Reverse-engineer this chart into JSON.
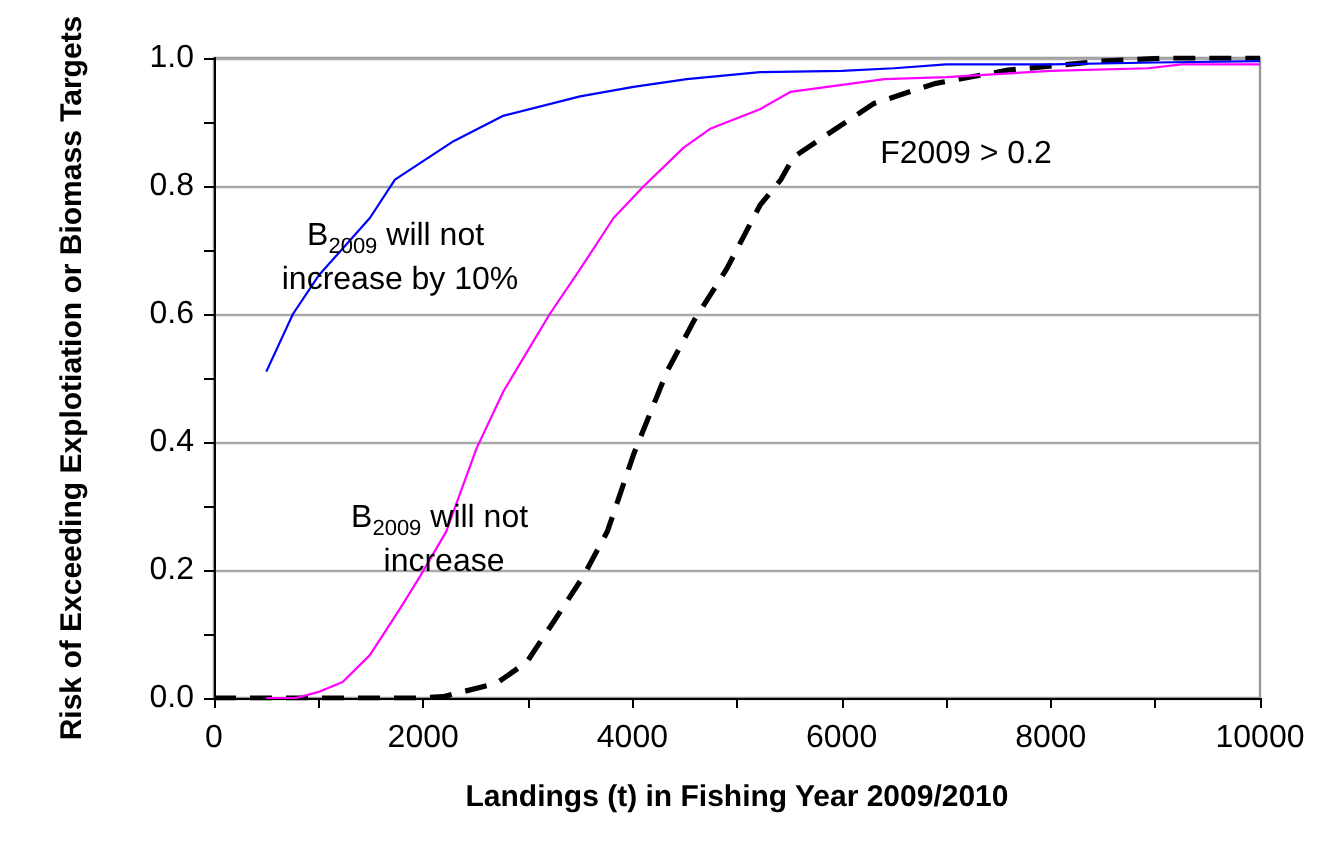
{
  "chart_data": {
    "type": "line",
    "xlabel": "Landings (t) in Fishing Year 2009/2010",
    "ylabel": "Risk of Exceeding Explotiation or Biomass Targets",
    "xlim": [
      0,
      10000
    ],
    "xticks": [
      0,
      {
        "value": 1000,
        "label": null
      },
      2000,
      {
        "value": 3000,
        "label": null
      },
      4000,
      {
        "value": 5000,
        "label": null
      },
      6000,
      {
        "value": 7000,
        "label": null
      },
      8000,
      {
        "value": 9000,
        "label": null
      },
      10000
    ],
    "ylim": [
      0,
      1
    ],
    "yticks": [
      {
        "value": 0,
        "label": "0.0"
      },
      {
        "value": 0.1,
        "label": null
      },
      0.2,
      {
        "value": 0.3,
        "label": null
      },
      0.4,
      {
        "value": 0.5,
        "label": null
      },
      0.6,
      {
        "value": 0.7,
        "label": null
      },
      0.8,
      {
        "value": 0.9,
        "label": null
      },
      {
        "value": 1,
        "label": "1.0"
      }
    ],
    "grid": "y",
    "marker": "none",
    "series": [
      {
        "color": "#0000ff",
        "line_style": "solid",
        "x": [
          500,
          755,
          1000,
          1490,
          1730,
          2290,
          2770,
          3500,
          4010,
          4520,
          5220,
          6000,
          6500,
          7000,
          8000,
          9000,
          10000
        ],
        "values": [
          0.51,
          0.6,
          0.66,
          0.75,
          0.81,
          0.87,
          0.91,
          0.94,
          0.955,
          0.967,
          0.978,
          0.98,
          0.984,
          0.99,
          0.99,
          0.993,
          0.995
        ]
      },
      {
        "color": "#ff00ff",
        "line_style": "solid",
        "x": [
          500,
          785,
          1010,
          1230,
          1490,
          1780,
          1970,
          2220,
          2510,
          2770,
          2990,
          3210,
          3500,
          3820,
          4110,
          4490,
          4750,
          5220,
          5510,
          6410,
          7000,
          8000,
          8930,
          9250,
          10000
        ],
        "values": [
          0,
          0,
          0.01,
          0.025,
          0.067,
          0.14,
          0.19,
          0.26,
          0.39,
          0.48,
          0.54,
          0.6,
          0.67,
          0.75,
          0.8,
          0.86,
          0.89,
          0.92,
          0.947,
          0.967,
          0.97,
          0.98,
          0.984,
          0.99,
          0.99
        ]
      },
      {
        "color": "#000000",
        "line_style": "dashed",
        "x": [
          0,
          1970,
          2190,
          2700,
          2990,
          3250,
          3530,
          3760,
          4010,
          4330,
          4590,
          4900,
          5220,
          5420,
          5540,
          5830,
          6310,
          6890,
          7590,
          8480,
          9120,
          10000
        ],
        "values": [
          0,
          0,
          0.002,
          0.023,
          0.056,
          0.12,
          0.19,
          0.26,
          0.38,
          0.51,
          0.59,
          0.67,
          0.77,
          0.81,
          0.845,
          0.877,
          0.929,
          0.96,
          0.981,
          0.995,
          1,
          1
        ]
      }
    ],
    "annotations": [
      "B$_{2009}$ will not increase by 10%",
      "B$_{2009}$ will not increase",
      "F2009 > 0.2"
    ]
  }
}
